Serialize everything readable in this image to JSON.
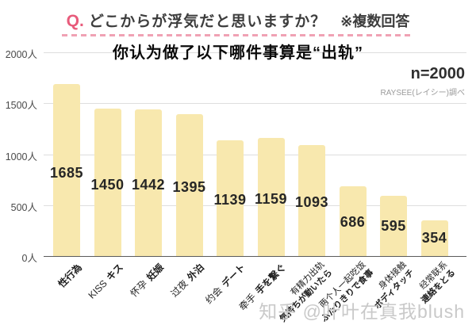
{
  "header": {
    "q_label": "Q.",
    "title_jp": "どこからが浮気だと思いますか？",
    "note_jp": "※複数回答",
    "subtitle_cn": "你认为做了以下哪件事算是“出轨”"
  },
  "meta": {
    "sample_size": "n=2000",
    "source": "RAYSEE(レイシー)調べ"
  },
  "watermark": "知乎 @叶叶在真我blush",
  "colors": {
    "bar": "#f8e8ae",
    "accent_pink": "#e85b7b",
    "dash_pink": "#f0a2b4",
    "grid": "#dedede",
    "zero_axis": "#5a5a5a",
    "value_text": "#262626"
  },
  "chart_data": {
    "type": "bar",
    "title": "どこからが浮気だと思いますか？",
    "subtitle": "你认为做了以下哪件事算是“出轨”",
    "note": "※複数回答",
    "sample": "n=2000",
    "categories": [
      {
        "cn": "",
        "jp": "性行為",
        "two_line": false
      },
      {
        "cn": "KISS",
        "jp": "キス",
        "two_line": false
      },
      {
        "cn": "怀孕",
        "jp": "妊娠",
        "two_line": false
      },
      {
        "cn": "过夜",
        "jp": "外泊",
        "two_line": false
      },
      {
        "cn": "约会",
        "jp": "デート",
        "two_line": false
      },
      {
        "cn": "牵手",
        "jp": "手を繋ぐ",
        "two_line": false
      },
      {
        "cn": "有精力出轨",
        "jp": "気持ちが動いたら",
        "two_line": true
      },
      {
        "cn": "两个人一起吃饭",
        "jp": "ふたりきりで食事",
        "two_line": true
      },
      {
        "cn": "身体接触",
        "jp": "ボディタッチ",
        "two_line": true
      },
      {
        "cn": "经常联系",
        "jp": "連絡をとる",
        "two_line": true
      }
    ],
    "values": [
      1685,
      1450,
      1442,
      1395,
      1139,
      1159,
      1093,
      686,
      595,
      354
    ],
    "y_ticks": [
      {
        "v": 2000,
        "label": "2000人"
      },
      {
        "v": 1500,
        "label": "1500人"
      },
      {
        "v": 1000,
        "label": "1000人"
      },
      {
        "v": 500,
        "label": "500人"
      },
      {
        "v": 0,
        "label": "0人"
      }
    ],
    "ylim": [
      0,
      2000
    ],
    "grid": true,
    "unit": "人",
    "legend": null
  }
}
